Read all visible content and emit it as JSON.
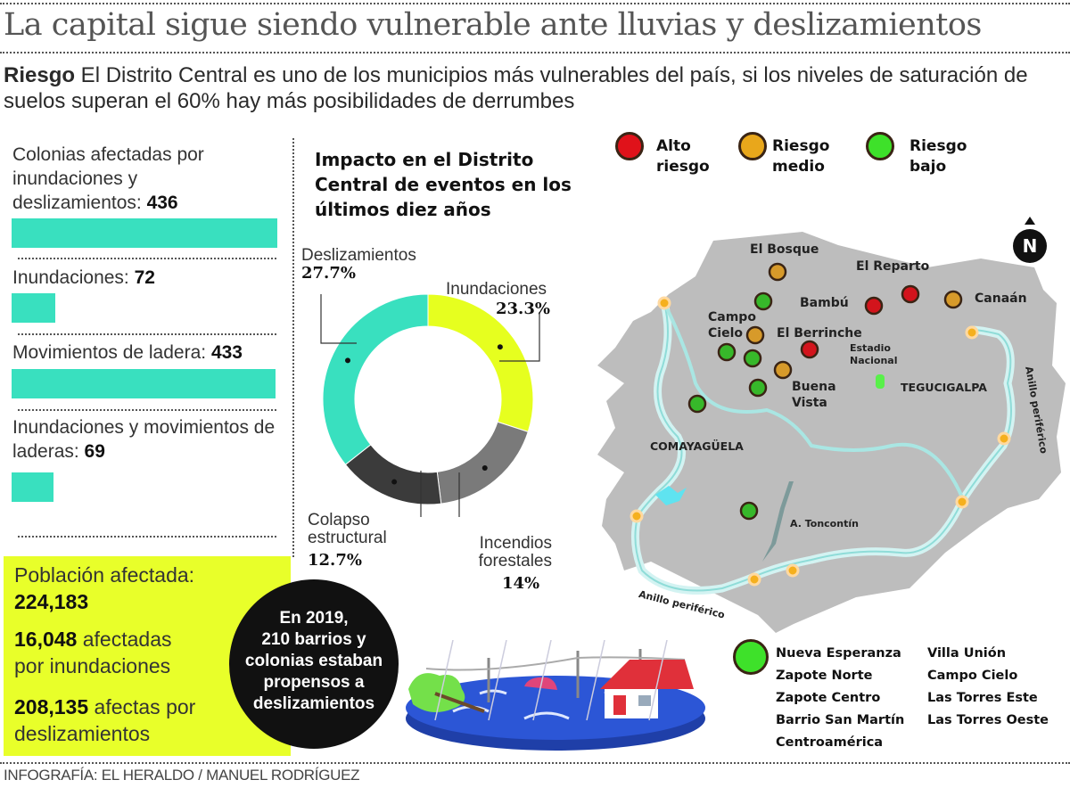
{
  "header": {
    "title": "La capital sigue siendo  vulnerable ante lluvias y deslizamientos",
    "lead_bold": "Riesgo",
    "lead_text": " El Distrito Central es uno de los municipios más vulnerables del país, si los niveles de saturación de suelos superan el 60% hay más posibilidades de derrumbes"
  },
  "stats": {
    "max_value": 436,
    "items": [
      {
        "label": "Colonias afectadas por inundaciones y deslizamientos: ",
        "value": 436,
        "value_text": "436"
      },
      {
        "label": "Inundaciones: ",
        "value": 72,
        "value_text": "72"
      },
      {
        "label": "Movimientos de ladera: ",
        "value": 433,
        "value_text": "433"
      },
      {
        "label": "Inundaciones y movimientos de laderas: ",
        "value": 69,
        "value_text": "69"
      }
    ],
    "bar_color": "#39e0bf"
  },
  "population": {
    "label": "Población afectada:",
    "total": "224,183",
    "floods_value": "16,048",
    "floods_text": " afectadas por inundaciones",
    "slides_value": "208,135",
    "slides_text": " afectas por deslizamientos"
  },
  "callout": {
    "text": "En 2019, 210 barrios y colonias estaban propensos a deslizamientos",
    "lines": [
      "En 2019,",
      "210 barrios y",
      "colonias estaban",
      "propensos a",
      "deslizamientos"
    ]
  },
  "credit": "INFOGRAFÍA: EL HERALDO / MANUEL RODRÍGUEZ",
  "chart_data": [
    {
      "type": "pie",
      "title": "Impacto en el Distrito Central de eventos en los últimos diez años",
      "donut": true,
      "slices": [
        {
          "label": "Inundaciones",
          "value": 23.3,
          "value_text": "23.3%",
          "color": "#e6ff1f"
        },
        {
          "label": "Incendios forestales",
          "value": 14,
          "value_text": "14%",
          "color": "#7a7a7a"
        },
        {
          "label": "Colapso estructural",
          "value": 12.7,
          "value_text": "12.7%",
          "color": "#3b3b3b"
        },
        {
          "label": "Deslizamientos",
          "value": 27.7,
          "value_text": "27.7%",
          "color": "#39e0bf"
        }
      ]
    },
    {
      "type": "bar",
      "title": "",
      "orientation": "horizontal",
      "categories": [
        "Colonias afectadas por inundaciones y deslizamientos",
        "Inundaciones",
        "Movimientos de ladera",
        "Inundaciones y movimientos de laderas"
      ],
      "values": [
        436,
        72,
        433,
        69
      ],
      "xlim": [
        0,
        436
      ]
    }
  ],
  "map": {
    "legend": [
      {
        "line1": "Alto",
        "line2": "riesgo",
        "color": "#e0121a"
      },
      {
        "line1": "Riesgo",
        "line2": "medio",
        "color": "#e9a71b"
      },
      {
        "line1": "Riesgo",
        "line2": "bajo",
        "color": "#3ee12a"
      }
    ],
    "labels": {
      "el_bosque": "El Bosque",
      "el_reparto": "El Reparto",
      "bambu": "Bambú",
      "canaan": "Canaán",
      "campo": "Campo",
      "cielo": "Cielo",
      "el_berrinche": "El Berrinche",
      "estadio": "Estadio",
      "nacional": "Nacional",
      "tegucigalpa": "TEGUCIGALPA",
      "buena": "Buena",
      "vista": "Vista",
      "comayaguela": "COMAYAGÜELA",
      "toncontin": "A. Toncontín",
      "anillo_sw": "Anillo periférico",
      "anillo_e": "Anillo periférico",
      "north": "N"
    },
    "land_color": "#bdbdbd",
    "river_color": "#c8f0ef",
    "low_risk_colonies": {
      "col1": [
        "Nueva Esperanza",
        "Zapote Norte",
        "Zapote Centro",
        "Barrio San Martín",
        "Centroamérica"
      ],
      "col2": [
        "Villa Unión",
        "Campo Cielo",
        "Las Torres Este",
        "Las Torres Oeste"
      ]
    }
  }
}
